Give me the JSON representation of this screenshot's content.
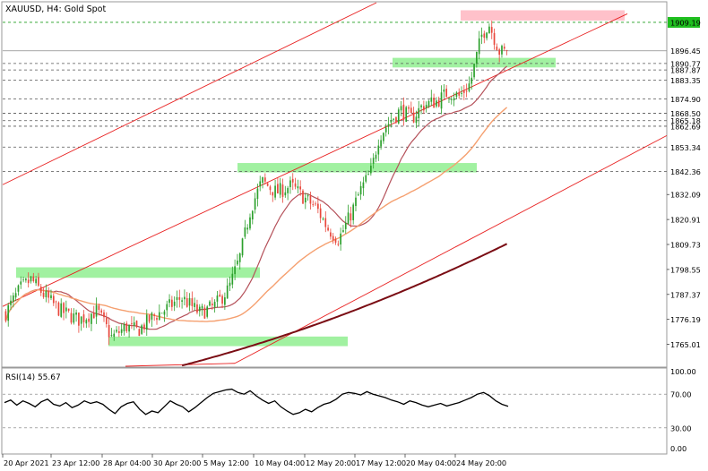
{
  "chart_data": {
    "type": "candlestick",
    "symbol_label": "XAUUSD, H4:  Gold Spot",
    "ylim": [
      1755.2,
      1918.0
    ],
    "y_ticks": [
      "1832.09",
      "1820.91",
      "1809.73",
      "1798.55",
      "1787.37",
      "1776.19",
      "1765.01"
    ],
    "price_levels": [
      {
        "label": "1890.77",
        "value": 1890.77
      },
      {
        "label": "1887.87",
        "value": 1887.87
      },
      {
        "label": "1883.35",
        "value": 1883.35
      },
      {
        "label": "1874.90",
        "value": 1874.9
      },
      {
        "label": "1868.50",
        "value": 1868.5
      },
      {
        "label": "1865.18",
        "value": 1865.18
      },
      {
        "label": "1862.69",
        "value": 1862.69
      },
      {
        "label": "1853.34",
        "value": 1853.34
      },
      {
        "label": "1842.36",
        "value": 1842.36
      }
    ],
    "current_price": {
      "label": "1896.45",
      "value": 1896.45
    },
    "highlight_price": {
      "label": "1909.19",
      "value": 1909.19
    },
    "x_labels": [
      "20 Apr 2021",
      "23 Apr 12:00",
      "28 Apr 04:00",
      "30 Apr 20:00",
      "5 May 12:00",
      "10 May 04:00",
      "12 May 20:00",
      "17 May 12:00",
      "20 May 04:00",
      "24 May 20:00"
    ],
    "bar_count": 200,
    "path": [
      [
        0,
        1779
      ],
      [
        8,
        1790
      ],
      [
        14,
        1794
      ],
      [
        22,
        1786
      ],
      [
        30,
        1780
      ],
      [
        40,
        1776
      ],
      [
        50,
        1780
      ],
      [
        58,
        1768
      ],
      [
        66,
        1773
      ],
      [
        72,
        1771
      ],
      [
        80,
        1777
      ],
      [
        88,
        1781
      ],
      [
        96,
        1786
      ],
      [
        106,
        1779
      ],
      [
        114,
        1782
      ],
      [
        122,
        1790
      ],
      [
        128,
        1804
      ],
      [
        134,
        1826
      ],
      [
        140,
        1838
      ],
      [
        148,
        1833
      ],
      [
        156,
        1836
      ],
      [
        164,
        1830
      ],
      [
        170,
        1826
      ],
      [
        176,
        1817
      ],
      [
        182,
        1812
      ],
      [
        188,
        1822
      ],
      [
        194,
        1834
      ],
      [
        200,
        1843
      ],
      [
        204,
        1858
      ],
      [
        210,
        1865
      ],
      [
        216,
        1870
      ],
      [
        222,
        1866
      ],
      [
        228,
        1872
      ],
      [
        236,
        1874
      ],
      [
        242,
        1878
      ],
      [
        248,
        1876
      ],
      [
        254,
        1882
      ],
      [
        260,
        1903
      ],
      [
        264,
        1909
      ],
      [
        270,
        1896
      ],
      [
        274,
        1896
      ]
    ],
    "support_resistance_zones": [
      {
        "price_range": [
          1889.0,
          1893.3
        ],
        "color": "#90EE90"
      },
      {
        "price_range": [
          1842.0,
          1846.2
        ],
        "color": "#90EE90"
      },
      {
        "price_range": [
          1794.8,
          1799.5
        ],
        "color": "#90EE90"
      },
      {
        "price_range": [
          1764.2,
          1768.5
        ],
        "color": "#90EE90"
      },
      {
        "price_range": [
          1910.0,
          1914.6
        ],
        "color": "#FFB6C1"
      }
    ],
    "rsi": {
      "label": "RSI(14) 55.67",
      "value": 55.67,
      "ticks": [
        "100.00",
        "70.00",
        "30.00",
        "0.00"
      ],
      "levels": [
        70,
        30
      ],
      "series": [
        60,
        63,
        57,
        62,
        59,
        55,
        61,
        64,
        58,
        56,
        60,
        54,
        57,
        62,
        59,
        61,
        58,
        52,
        47,
        55,
        59,
        61,
        52,
        46,
        50,
        48,
        55,
        62,
        58,
        55,
        49,
        54,
        60,
        66,
        71,
        73,
        75,
        76,
        72,
        70,
        74,
        68,
        63,
        59,
        62,
        55,
        50,
        46,
        48,
        52,
        49,
        54,
        58,
        60,
        64,
        70,
        72,
        71,
        69,
        73,
        70,
        68,
        66,
        63,
        61,
        58,
        62,
        60,
        57,
        55,
        57,
        59,
        56,
        58,
        60,
        63,
        66,
        70,
        72,
        68,
        62,
        58,
        55.67
      ]
    },
    "colors": {
      "bull": "#2ca02c",
      "bear": "#e8473b",
      "ma_fast": "#b5515a",
      "ma_mid": "#f5a070",
      "ma_slow": "#7a0d14",
      "channel": "#e82020",
      "grid": "#888888",
      "rsi_line": "#000000",
      "highlight_label_bg": "#1fbf1f"
    }
  }
}
